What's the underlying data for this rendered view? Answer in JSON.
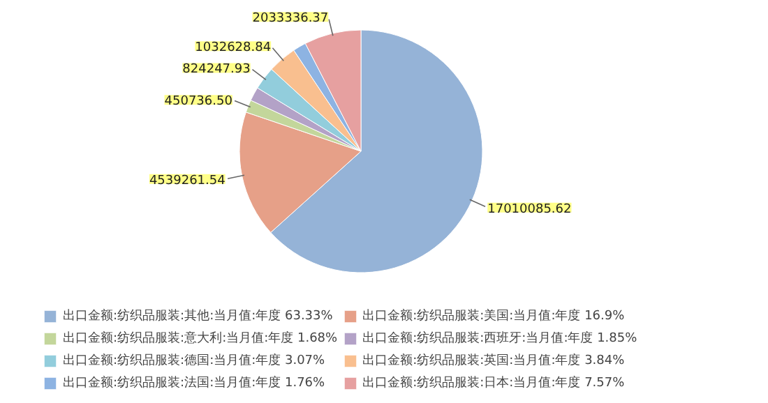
{
  "chart_data": {
    "type": "pie",
    "categories": [
      "出口金额:纺织品服装:其他:当月值:年度 63.33%",
      "出口金额:纺织品服装:美国:当月值:年度 16.9%",
      "出口金额:纺织品服装:意大利:当月值:年度 1.68%",
      "出口金额:纺织品服装:西班牙:当月值:年度 1.85%",
      "出口金额:纺织品服装:德国:当月值:年度 3.07%",
      "出口金额:纺织品服装:英国:当月值:年度 3.84%",
      "出口金额:纺织品服装:法国:当月值:年度 1.76%",
      "出口金额:纺织品服装:日本:当月值:年度 7.57%"
    ],
    "values": [
      17010085.62,
      4539261.54,
      450736.5,
      496900,
      824247.93,
      1032628.84,
      472700,
      2033336.37
    ],
    "value_labels": [
      "17010085.62",
      "4539261.54",
      "450736.50",
      null,
      "824247.93",
      "1032628.84",
      null,
      "2033336.37"
    ],
    "colors": [
      "#95b3d7",
      "#e6a088",
      "#c3d69b",
      "#b3a2c7",
      "#92cddc",
      "#f9bf8f",
      "#8db3e2",
      "#e6a0a0"
    ],
    "legend": "bottom"
  }
}
